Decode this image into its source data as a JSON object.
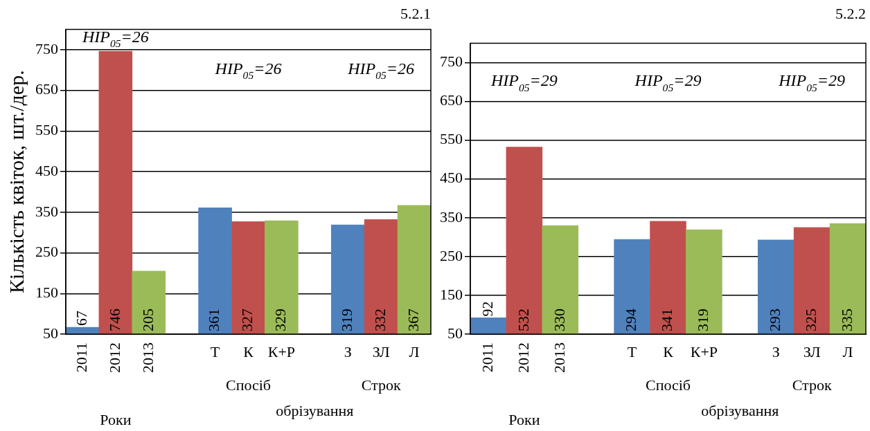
{
  "chart_data": [
    {
      "type": "bar",
      "title": "5.2.1",
      "ylabel": "Кількість квіток, шт./дер.",
      "categories": [
        "2011",
        "2012",
        "2013",
        null,
        "Т",
        "К",
        "К+Р",
        null,
        "З",
        "ЗЛ",
        "Л"
      ],
      "values": [
        67,
        746,
        205,
        null,
        361,
        327,
        329,
        null,
        319,
        332,
        367
      ],
      "colors": [
        "#4f81bd",
        "#c0504d",
        "#9bbb59",
        null,
        "#4f81bd",
        "#c0504d",
        "#9bbb59",
        null,
        "#4f81bd",
        "#c0504d",
        "#9bbb59"
      ],
      "ylim": [
        50,
        800
      ],
      "yticks": [
        50,
        150,
        250,
        350,
        450,
        550,
        650,
        750
      ],
      "grid": "y",
      "legend": false,
      "data_labels": true,
      "annotations": [
        "НІР$_{05}$=26",
        "НІР$_{05}$=26",
        "НІР$_{05}$=26",
        "Роки",
        "Спосіб",
        "Строк",
        "обрізування"
      ]
    },
    {
      "type": "bar",
      "title": "5.2.2",
      "categories": [
        "2011",
        "2012",
        "2013",
        null,
        "Т",
        "К",
        "К+Р",
        null,
        "З",
        "ЗЛ",
        "Л"
      ],
      "values": [
        92,
        532,
        330,
        null,
        294,
        341,
        319,
        null,
        293,
        325,
        335
      ],
      "colors": [
        "#4f81bd",
        "#c0504d",
        "#9bbb59",
        null,
        "#4f81bd",
        "#c0504d",
        "#9bbb59",
        null,
        "#4f81bd",
        "#c0504d",
        "#9bbb59"
      ],
      "ylim": [
        50,
        800
      ],
      "yticks": [
        50,
        150,
        250,
        350,
        450,
        550,
        650,
        750
      ],
      "grid": "y",
      "legend": false,
      "data_labels": true,
      "annotations": [
        "НІР$_{05}$=29",
        "НІР$_{05}$=29",
        "НІР$_{05}$=29",
        "Роки",
        "Спосіб",
        "Строк",
        "обрізування"
      ]
    }
  ]
}
